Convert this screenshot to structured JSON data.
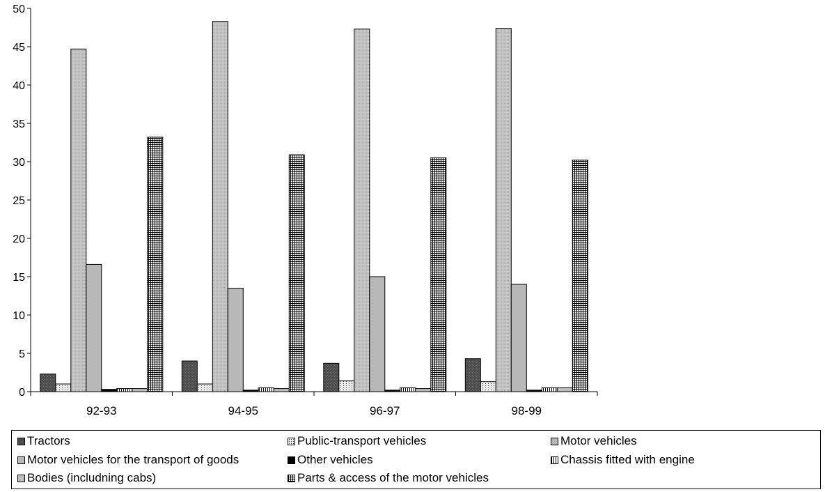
{
  "chart_data": {
    "type": "bar",
    "categories": [
      "92-93",
      "94-95",
      "96-97",
      "98-99"
    ],
    "series": [
      {
        "name": "Tractors",
        "values": [
          2.3,
          4.0,
          3.7,
          4.3
        ],
        "color": "#555555",
        "pattern": "dark"
      },
      {
        "name": "Public-transport vehicles",
        "values": [
          1.0,
          1.0,
          1.4,
          1.3
        ],
        "color": "#e6e6e6",
        "pattern": "dots"
      },
      {
        "name": "Motor vehicles",
        "values": [
          44.7,
          48.3,
          47.3,
          47.4
        ],
        "color": "#c2c2c2",
        "pattern": "fine"
      },
      {
        "name": "Motor vehicles for the transport of goods",
        "values": [
          16.6,
          13.5,
          15.0,
          14.0
        ],
        "color": "#b8b8b8",
        "pattern": "plain"
      },
      {
        "name": "Other vehicles",
        "values": [
          0.3,
          0.2,
          0.2,
          0.2
        ],
        "color": "#000000",
        "pattern": "solid"
      },
      {
        "name": "Chassis fitted with engine",
        "values": [
          0.4,
          0.5,
          0.5,
          0.5
        ],
        "color": "#ffffff",
        "pattern": "vstripes"
      },
      {
        "name": "Bodies (includning cabs)",
        "values": [
          0.4,
          0.4,
          0.4,
          0.5
        ],
        "color": "#bdbdbd",
        "pattern": "plain"
      },
      {
        "name": "Parts & access of the motor vehicles",
        "values": [
          33.2,
          30.9,
          30.5,
          30.2
        ],
        "color": "#ffffff",
        "pattern": "grid"
      }
    ],
    "y_ticks": [
      "0",
      "5",
      "10",
      "15",
      "20",
      "25",
      "30",
      "35",
      "40",
      "45",
      "50"
    ],
    "ylim": [
      0,
      50
    ],
    "grid": false,
    "legend_placement": "bottom"
  }
}
